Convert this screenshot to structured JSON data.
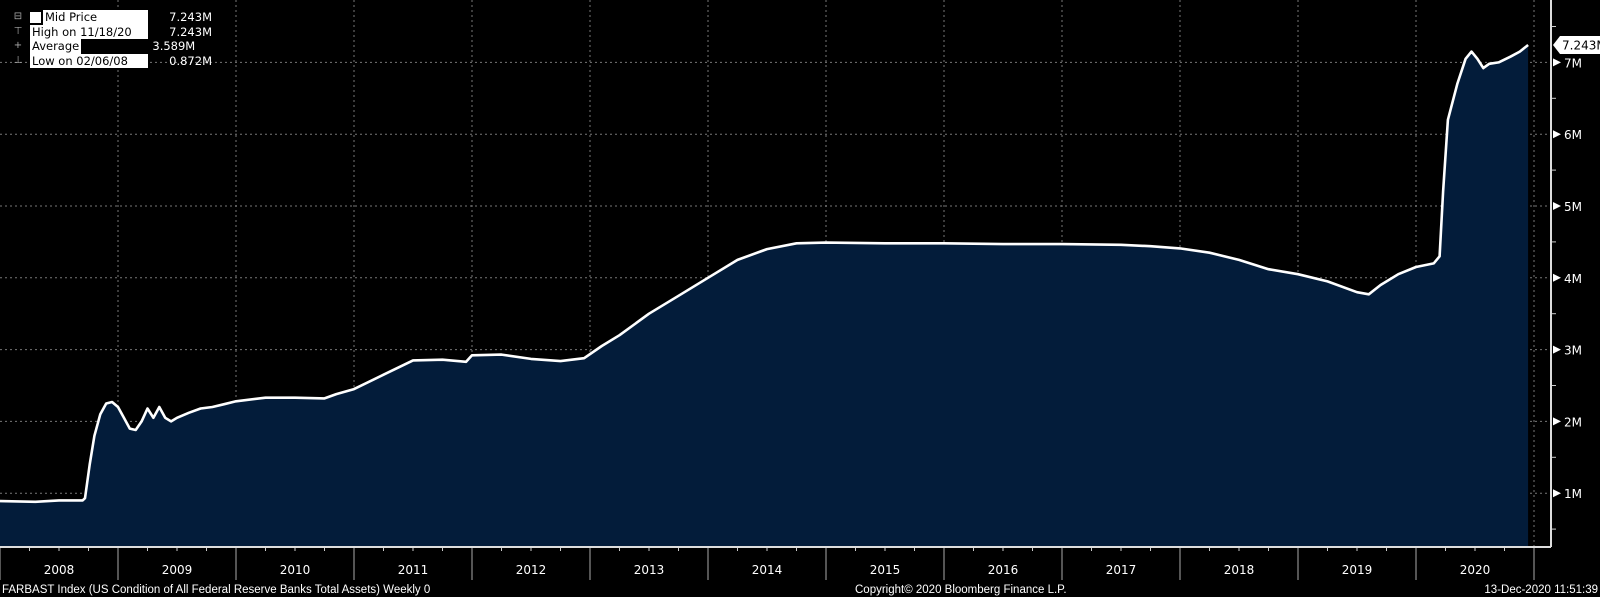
{
  "chart_data": {
    "type": "area",
    "title": "FARBAST Index (US Condition of All Federal Reserve Banks Total Assets)  Weekly 0",
    "ylabel": "",
    "xlabel": "",
    "x_tick_labels": [
      "2008",
      "2009",
      "2010",
      "2011",
      "2012",
      "2013",
      "2014",
      "2015",
      "2016",
      "2017",
      "2018",
      "2019",
      "2020"
    ],
    "xlim": [
      2008.0,
      2021.0
    ],
    "ylim": [
      0,
      7.8
    ],
    "y_ticks": [
      1,
      2,
      3,
      4,
      5,
      6,
      7
    ],
    "y_tick_labels": [
      "1M",
      "2M",
      "3M",
      "4M",
      "5M",
      "6M",
      "7M"
    ],
    "grid": true,
    "series": [
      {
        "name": "Mid Price",
        "color": "#ffffff",
        "fill": "#031c3a",
        "x": [
          2008.0,
          2008.3,
          2008.5,
          2008.7,
          2008.72,
          2008.76,
          2008.8,
          2008.85,
          2008.9,
          2008.95,
          2009.0,
          2009.05,
          2009.1,
          2009.15,
          2009.2,
          2009.25,
          2009.3,
          2009.35,
          2009.4,
          2009.45,
          2009.5,
          2009.6,
          2009.7,
          2009.8,
          2009.9,
          2010.0,
          2010.25,
          2010.5,
          2010.75,
          2010.85,
          2011.0,
          2011.25,
          2011.5,
          2011.75,
          2011.95,
          2012.0,
          2012.25,
          2012.5,
          2012.75,
          2012.95,
          2013.1,
          2013.25,
          2013.5,
          2013.75,
          2014.0,
          2014.25,
          2014.5,
          2014.75,
          2015.0,
          2015.5,
          2016.0,
          2016.5,
          2017.0,
          2017.5,
          2017.75,
          2018.0,
          2018.25,
          2018.5,
          2018.75,
          2019.0,
          2019.25,
          2019.5,
          2019.6,
          2019.7,
          2019.85,
          2020.0,
          2020.15,
          2020.2,
          2020.23,
          2020.27,
          2020.35,
          2020.42,
          2020.47,
          2020.52,
          2020.57,
          2020.62,
          2020.7,
          2020.8,
          2020.88,
          2020.95
        ],
        "values": [
          0.89,
          0.88,
          0.9,
          0.9,
          0.93,
          1.4,
          1.8,
          2.1,
          2.25,
          2.27,
          2.2,
          2.05,
          1.9,
          1.88,
          2.0,
          2.18,
          2.05,
          2.2,
          2.05,
          2.0,
          2.05,
          2.12,
          2.18,
          2.2,
          2.24,
          2.28,
          2.33,
          2.33,
          2.32,
          2.38,
          2.45,
          2.65,
          2.85,
          2.86,
          2.83,
          2.92,
          2.93,
          2.87,
          2.84,
          2.88,
          3.05,
          3.2,
          3.5,
          3.75,
          4.0,
          4.25,
          4.4,
          4.48,
          4.49,
          4.48,
          4.48,
          4.47,
          4.47,
          4.46,
          4.44,
          4.41,
          4.35,
          4.25,
          4.12,
          4.05,
          3.95,
          3.8,
          3.77,
          3.9,
          4.05,
          4.15,
          4.2,
          4.3,
          5.2,
          6.2,
          6.7,
          7.05,
          7.15,
          7.05,
          6.92,
          6.98,
          7.0,
          7.08,
          7.15,
          7.243
        ]
      }
    ],
    "legend": {
      "placement": "top-left",
      "entries": [
        {
          "label": "Mid Price",
          "value": "7.243M"
        },
        {
          "label": "High on 11/18/20",
          "value": "7.243M"
        },
        {
          "label": "Average",
          "value": "3.589M"
        },
        {
          "label": "Low on 02/06/08",
          "value": "0.872M"
        }
      ]
    },
    "last_value_label": "7.243M"
  },
  "footer": {
    "left": "FARBAST Index (US Condition of All Federal Reserve Banks Total Assets)  Weekly 0",
    "center": "Copyright© 2020 Bloomberg Finance L.P.",
    "right": "13-Dec-2020 11:51:39"
  }
}
